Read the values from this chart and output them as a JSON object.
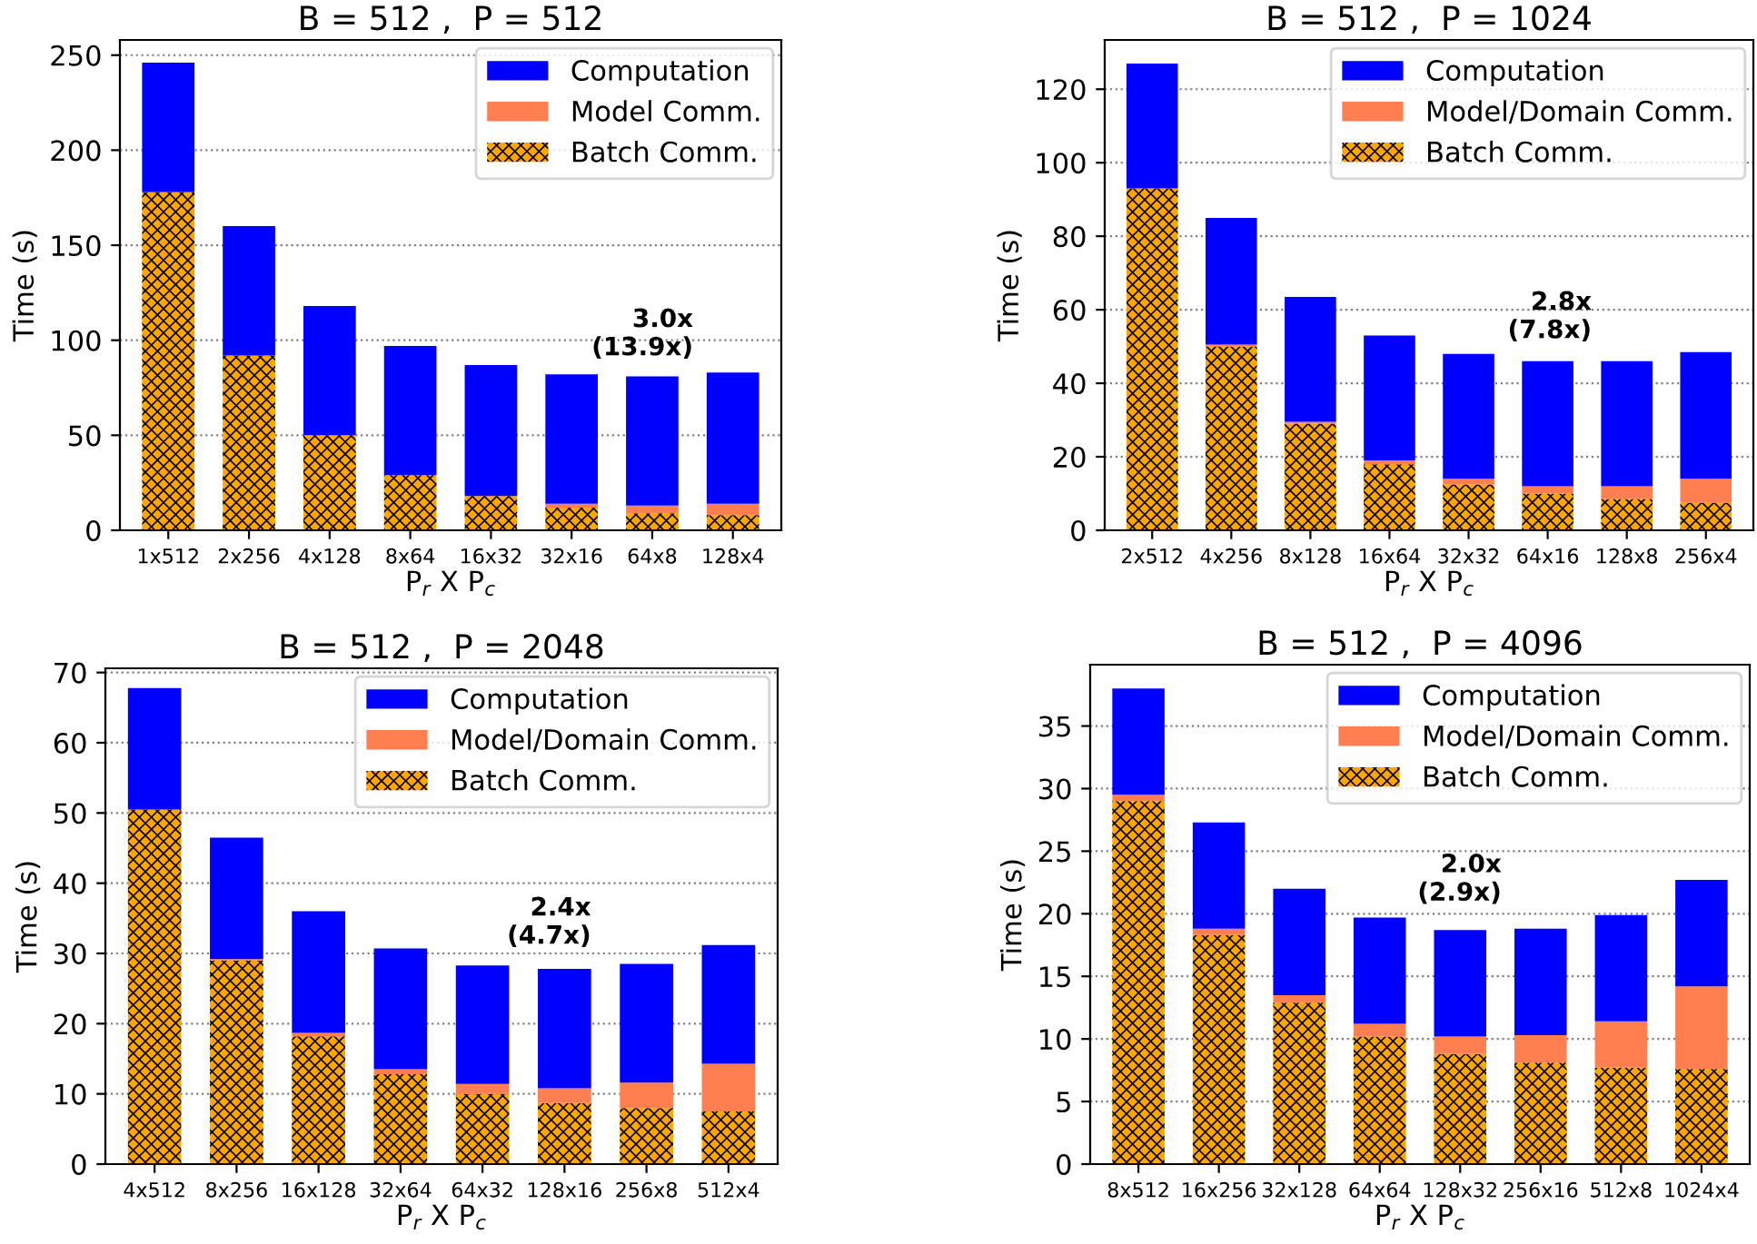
{
  "chart_data": [
    {
      "type": "bar",
      "stacked": true,
      "title": "B = 512 ,  P = 512",
      "xlabel": "P$_{r}$ X P$_{c}$",
      "ylabel": "Time (s)",
      "categories": [
        "1x512",
        "2x256",
        "4x128",
        "8x64",
        "16x32",
        "32x16",
        "64x8",
        "128x4"
      ],
      "series": [
        {
          "name": "Batch Comm.",
          "color": "#ffa500",
          "values": [
            178,
            92,
            50,
            29,
            18,
            12,
            9,
            8
          ]
        },
        {
          "name": "Model Comm.",
          "color": "#ff7f50",
          "values": [
            0,
            0,
            0,
            0,
            0,
            2,
            4,
            6
          ]
        },
        {
          "name": "Computation",
          "color": "#0000ff",
          "values": [
            68,
            68,
            68,
            68,
            69,
            68,
            68,
            69
          ]
        }
      ],
      "ylim": [
        0,
        258
      ],
      "yticks": [
        0,
        50,
        100,
        150,
        200,
        250
      ],
      "grid": "y",
      "legend": "top right",
      "annotations": [
        "3.0x\n(13.9x)"
      ]
    },
    {
      "type": "bar",
      "stacked": true,
      "title": "B = 512 ,  P = 1024",
      "xlabel": "P$_{r}$ X P$_{c}$",
      "ylabel": "Time (s)",
      "categories": [
        "2x512",
        "4x256",
        "8x128",
        "16x64",
        "32x32",
        "64x16",
        "128x8",
        "256x4"
      ],
      "series": [
        {
          "name": "Batch Comm.",
          "color": "#ffa500",
          "values": [
            93,
            50,
            29,
            18,
            12.5,
            10,
            8.5,
            7.5
          ]
        },
        {
          "name": "Model/Domain Comm.",
          "color": "#ff7f50",
          "values": [
            0,
            0.5,
            0.5,
            1,
            1.5,
            2,
            3.5,
            6.5
          ]
        },
        {
          "name": "Computation",
          "color": "#0000ff",
          "values": [
            34,
            34.5,
            34,
            34,
            34,
            34,
            34,
            34.5
          ]
        }
      ],
      "ylim": [
        0,
        133.4
      ],
      "yticks": [
        0,
        20,
        40,
        60,
        80,
        100,
        120
      ],
      "grid": "y",
      "legend": "top right",
      "annotations": [
        "2.8x\n(7.8x)"
      ]
    },
    {
      "type": "bar",
      "stacked": true,
      "title": "B = 512 ,  P = 2048",
      "xlabel": "P$_{r}$ X P$_{c}$",
      "ylabel": "Time (s)",
      "categories": [
        "4x512",
        "8x256",
        "16x128",
        "32x64",
        "64x32",
        "128x16",
        "256x8",
        "512x4"
      ],
      "series": [
        {
          "name": "Batch Comm.",
          "color": "#ffa500",
          "values": [
            50.5,
            29,
            18.2,
            12.8,
            10,
            8.7,
            8,
            7.5
          ]
        },
        {
          "name": "Model/Domain Comm.",
          "color": "#ff7f50",
          "values": [
            0,
            0.2,
            0.5,
            0.7,
            1.4,
            2.1,
            3.6,
            6.8
          ]
        },
        {
          "name": "Computation",
          "color": "#0000ff",
          "values": [
            17.3,
            17.3,
            17.3,
            17.2,
            16.9,
            17,
            16.9,
            16.9
          ]
        }
      ],
      "ylim": [
        0,
        70.6
      ],
      "yticks": [
        0,
        10,
        20,
        30,
        40,
        50,
        60,
        70
      ],
      "grid": "y",
      "legend": "top right",
      "annotations": [
        "2.4x\n(4.7x)"
      ]
    },
    {
      "type": "bar",
      "stacked": true,
      "title": "B = 512 ,  P = 4096",
      "xlabel": "P$_{r}$ X P$_{c}$",
      "ylabel": "Time (s)",
      "categories": [
        "8x512",
        "16x256",
        "32x128",
        "64x64",
        "128x32",
        "256x16",
        "512x8",
        "1024x4"
      ],
      "series": [
        {
          "name": "Batch Comm.",
          "color": "#ffa500",
          "values": [
            29,
            18.3,
            12.9,
            10.2,
            8.8,
            8.1,
            7.7,
            7.6
          ]
        },
        {
          "name": "Model/Domain Comm.",
          "color": "#ff7f50",
          "values": [
            0.5,
            0.5,
            0.6,
            1.0,
            1.4,
            2.2,
            3.7,
            6.6
          ]
        },
        {
          "name": "Computation",
          "color": "#0000ff",
          "values": [
            8.5,
            8.5,
            8.5,
            8.5,
            8.5,
            8.5,
            8.5,
            8.5
          ]
        }
      ],
      "ylim": [
        0,
        39.9
      ],
      "yticks": [
        0,
        5,
        10,
        15,
        20,
        25,
        30,
        35
      ],
      "grid": "y",
      "legend": "top right",
      "annotations": [
        "2.0x\n(2.9x)"
      ]
    }
  ]
}
